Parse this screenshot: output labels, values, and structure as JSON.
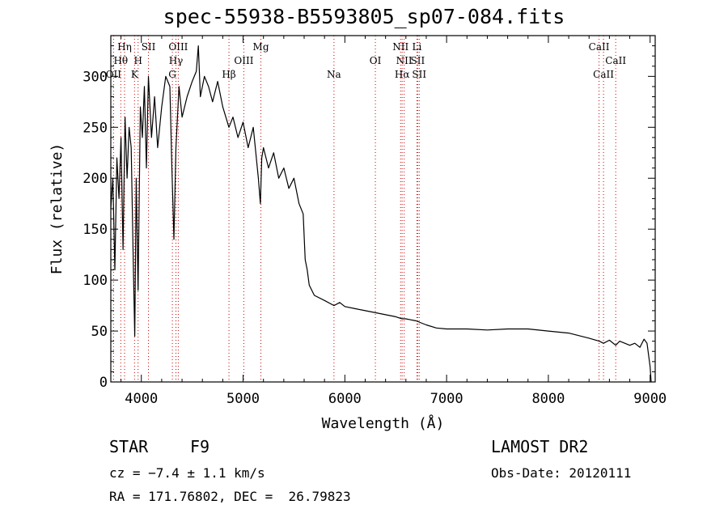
{
  "chart_data": {
    "type": "line",
    "title": "spec-55938-B5593805_sp07-084.fits",
    "xlabel": "Wavelength (Å)",
    "ylabel": "Flux (relative)",
    "xlim": [
      3700,
      9050
    ],
    "ylim": [
      0,
      340
    ],
    "xticks": [
      4000,
      5000,
      6000,
      7000,
      8000,
      9000
    ],
    "yticks": [
      0,
      50,
      100,
      150,
      200,
      250,
      300
    ],
    "grid": false,
    "series": [
      {
        "x": [
          3700,
          3720,
          3740,
          3760,
          3780,
          3800,
          3820,
          3840,
          3860,
          3880,
          3900,
          3920,
          3935,
          3950,
          3968,
          3990,
          4010,
          4030,
          4050,
          4070,
          4100,
          4130,
          4160,
          4200,
          4240,
          4280,
          4300,
          4320,
          4340,
          4370,
          4400,
          4450,
          4500,
          4540,
          4560,
          4580,
          4620,
          4660,
          4700,
          4750,
          4800,
          4861,
          4900,
          4950,
          5000,
          5050,
          5100,
          5150,
          5170,
          5183,
          5200,
          5250,
          5300,
          5350,
          5400,
          5450,
          5500,
          5550,
          5590,
          5610,
          5630,
          5650,
          5700,
          5800,
          5893,
          5950,
          6000,
          6100,
          6200,
          6300,
          6400,
          6500,
          6563,
          6600,
          6700,
          6800,
          6900,
          7000,
          7200,
          7400,
          7600,
          7800,
          8000,
          8200,
          8400,
          8500,
          8542,
          8600,
          8662,
          8700,
          8800,
          8850,
          8900,
          8940,
          8970,
          9000,
          9010
        ],
        "y": [
          170,
          200,
          110,
          220,
          180,
          240,
          130,
          260,
          200,
          250,
          230,
          120,
          45,
          200,
          90,
          270,
          240,
          290,
          210,
          300,
          240,
          280,
          230,
          270,
          300,
          290,
          210,
          140,
          230,
          290,
          260,
          280,
          295,
          305,
          330,
          280,
          300,
          290,
          275,
          295,
          270,
          250,
          260,
          240,
          255,
          230,
          250,
          200,
          175,
          220,
          230,
          210,
          225,
          200,
          210,
          190,
          200,
          175,
          165,
          120,
          110,
          95,
          85,
          80,
          75,
          78,
          74,
          72,
          70,
          68,
          66,
          64,
          62,
          62,
          60,
          56,
          53,
          52,
          52,
          51,
          52,
          52,
          50,
          48,
          43,
          40,
          38,
          41,
          36,
          40,
          36,
          38,
          34,
          42,
          38,
          15,
          0
        ]
      }
    ]
  },
  "lines": [
    {
      "label": "Hη",
      "wl": 3835,
      "row": 1,
      "dx": 0
    },
    {
      "label": "Hθ",
      "wl": 3798,
      "row": 2,
      "dx": 0
    },
    {
      "label": "OII",
      "wl": 3727,
      "row": 3,
      "dx": 0
    },
    {
      "label": "SII",
      "wl": 4070,
      "row": 1,
      "dx": 0
    },
    {
      "label": "H",
      "wl": 3968,
      "row": 2,
      "dx": 0
    },
    {
      "label": "K",
      "wl": 3933,
      "row": 3,
      "dx": 0
    },
    {
      "label": "OIII",
      "wl": 4363,
      "row": 1,
      "dx": 0
    },
    {
      "label": "Hγ",
      "wl": 4340,
      "row": 2,
      "dx": 0
    },
    {
      "label": "G",
      "wl": 4305,
      "row": 3,
      "dx": 0
    },
    {
      "label": "Mg",
      "wl": 5175,
      "row": 1,
      "dx": 0
    },
    {
      "label": "OIII",
      "wl": 5007,
      "row": 2,
      "dx": 0
    },
    {
      "label": "Hβ",
      "wl": 4861,
      "row": 3,
      "dx": 0
    },
    {
      "label": "Na",
      "wl": 5893,
      "row": 3,
      "dx": 0
    },
    {
      "label": "OI",
      "wl": 6300,
      "row": 2,
      "dx": 0
    },
    {
      "label": "NII",
      "wl": 6548,
      "row": 1,
      "dx": 0
    },
    {
      "label": "Li",
      "wl": 6708,
      "row": 1,
      "dx": 0
    },
    {
      "label": "NII",
      "wl": 6583,
      "row": 2,
      "dx": 0
    },
    {
      "label": "SII",
      "wl": 6716,
      "row": 2,
      "dx": 0
    },
    {
      "label": "Hα",
      "wl": 6563,
      "row": 3,
      "dx": 0
    },
    {
      "label": "SII",
      "wl": 6731,
      "row": 3,
      "dx": 0
    },
    {
      "label": "CaII",
      "wl": 8498,
      "row": 1,
      "dx": 0
    },
    {
      "label": "CaII",
      "wl": 8662,
      "row": 2,
      "dx": 0
    },
    {
      "label": "CaII",
      "wl": 8542,
      "row": 3,
      "dx": 0
    }
  ],
  "info": {
    "class_label": "STAR",
    "subclass": "F9",
    "survey": "LAMOST DR2",
    "cz": "cz = −7.4 ± 1.1 km/s",
    "obs_date": "Obs-Date: 20120111",
    "coords": "RA = 171.76802, DEC =  26.79823"
  }
}
